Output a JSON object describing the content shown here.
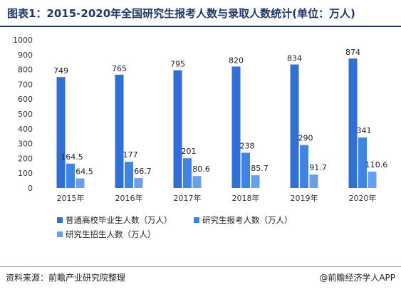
{
  "title": "图表1：2015-2020年全国研究生报考人数与录取人数统计(单位：万人)",
  "source": "资料来源：前瞻产业研究院整理",
  "brand": "@前瞻经济学人APP",
  "chart_data": {
    "type": "bar",
    "categories": [
      "2015年",
      "2016年",
      "2017年",
      "2018年",
      "2019年",
      "2020年"
    ],
    "series": [
      {
        "name": "普通高校毕业生人数（万人）",
        "values": [
          749,
          765,
          795,
          820,
          834,
          874
        ],
        "color": "#2f6fd6"
      },
      {
        "name": "研究生报考人数（万人）",
        "values": [
          164.5,
          177,
          201,
          238,
          290,
          341
        ],
        "color": "#3e84e0"
      },
      {
        "name": "研究生招生人数（万人）",
        "values": [
          64.5,
          66.7,
          80.6,
          85.7,
          91.7,
          110.6
        ],
        "color": "#6a9fea"
      }
    ],
    "value_labels": [
      [
        "749",
        "765",
        "795",
        "820",
        "834",
        "874"
      ],
      [
        "164.5",
        "177",
        "201",
        "238",
        "290",
        "341"
      ],
      [
        "64.5",
        "66.7",
        "80.6",
        "85.7",
        "91.7",
        "110.6"
      ]
    ],
    "ylim": [
      0,
      1000
    ],
    "yticks": [
      "0",
      "100",
      "200",
      "300",
      "400",
      "500",
      "600",
      "700",
      "800",
      "900",
      "1000"
    ],
    "xlabel": "",
    "ylabel": "",
    "legend_position": "bottom-left",
    "grid": false
  }
}
